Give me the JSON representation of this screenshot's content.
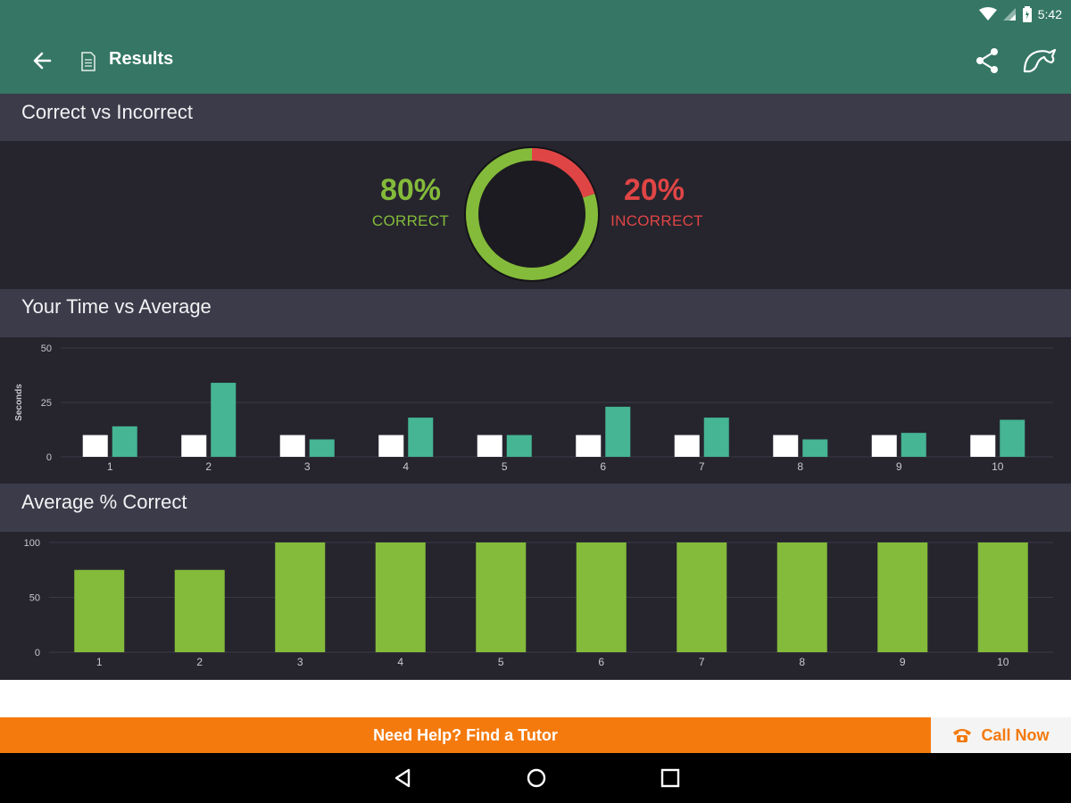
{
  "status_bar": {
    "time": "5:42"
  },
  "app_bar": {
    "title": "Results",
    "icons": [
      "arrow-back-icon",
      "document-icon",
      "share-icon",
      "app-logo-icon"
    ]
  },
  "sections": {
    "correct_vs_incorrect": {
      "title": "Correct vs Incorrect",
      "correct_value": "80%",
      "correct_label": "CORRECT",
      "incorrect_value": "20%",
      "incorrect_label": "INCORRECT"
    },
    "time_vs_average": {
      "title": "Your Time vs Average"
    },
    "average_correct": {
      "title": "Average % Correct"
    }
  },
  "colors": {
    "appbar": "#357764",
    "correct": "#84bb3a",
    "incorrect": "#e04545",
    "teal_bar": "#45b594",
    "white_bar": "#ffffff",
    "green_bar": "#84bb3a",
    "orange": "#f47a0d"
  },
  "chart_data": [
    {
      "type": "pie",
      "title": "Correct vs Incorrect",
      "categories": [
        "CORRECT",
        "INCORRECT"
      ],
      "values": [
        80,
        20
      ]
    },
    {
      "type": "bar",
      "title": "Your Time vs Average",
      "ylabel": "Seconds",
      "categories": [
        "1",
        "2",
        "3",
        "4",
        "5",
        "6",
        "7",
        "8",
        "9",
        "10"
      ],
      "ylim": [
        0,
        50
      ],
      "yticks": [
        "0",
        "25",
        "50"
      ],
      "grid": true,
      "series": [
        {
          "color": "#ffffff",
          "values": [
            10,
            10,
            10,
            10,
            10,
            10,
            10,
            10,
            10,
            10
          ]
        },
        {
          "color": "#45b594",
          "values": [
            14,
            34,
            8,
            18,
            10,
            23,
            18,
            8,
            11,
            17
          ]
        }
      ]
    },
    {
      "type": "bar",
      "title": "Average % Correct",
      "categories": [
        "1",
        "2",
        "3",
        "4",
        "5",
        "6",
        "7",
        "8",
        "9",
        "10"
      ],
      "ylim": [
        0,
        100
      ],
      "yticks": [
        "0",
        "50",
        "100"
      ],
      "grid": true,
      "series": [
        {
          "color": "#84bb3a",
          "values": [
            75,
            75,
            100,
            100,
            100,
            100,
            100,
            100,
            100,
            100
          ]
        }
      ]
    }
  ],
  "footer": {
    "tutor_text": "Need Help? Find a Tutor",
    "call_label": "Call Now"
  }
}
